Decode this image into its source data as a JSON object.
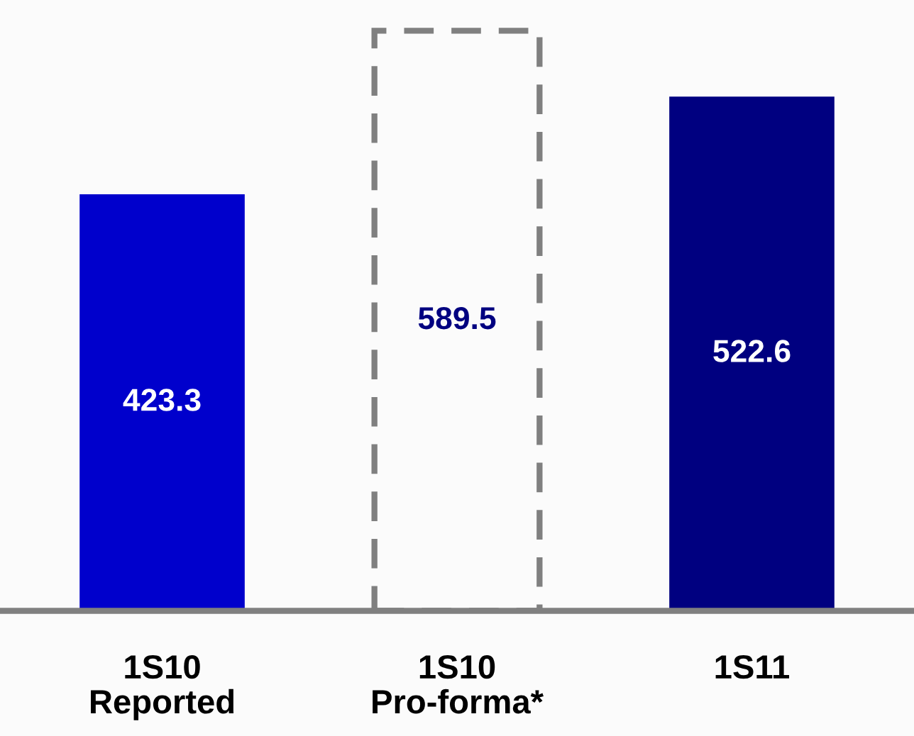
{
  "chart_data": {
    "type": "bar",
    "categories": [
      "1S10\nReported",
      "1S10\nPro-forma*",
      "1S11"
    ],
    "series": [
      {
        "values": [
          423.3,
          null,
          522.6
        ],
        "colors": [
          "#0000cc",
          "#ffffff",
          "#000080"
        ]
      },
      {
        "values": [
          null,
          589.5,
          null
        ],
        "color": "#808080",
        "line_style": "dashed"
      }
    ],
    "data_labels": true,
    "grid": false,
    "legend": false
  }
}
